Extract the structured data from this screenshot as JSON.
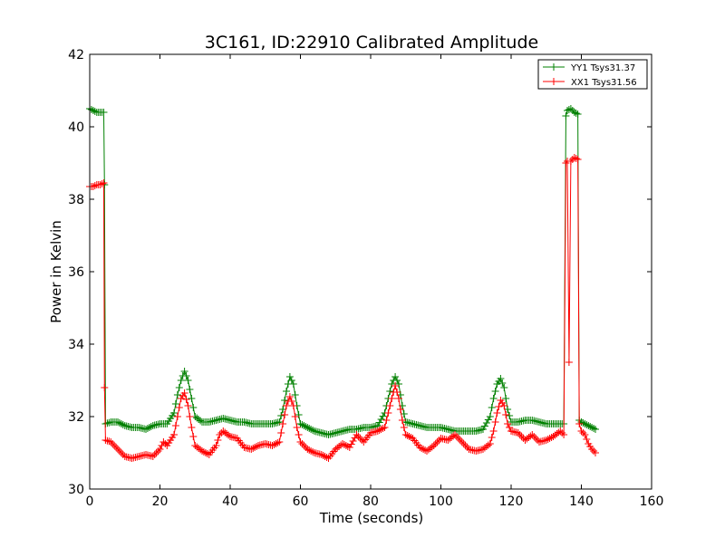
{
  "chart_data": {
    "type": "line",
    "title": "3C161, ID:22910 Calibrated Amplitude",
    "xlabel": "Time (seconds)",
    "ylabel": "Power in Kelvin",
    "xlim": [
      0,
      160
    ],
    "ylim": [
      30,
      42
    ],
    "xticks": [
      0,
      20,
      40,
      60,
      80,
      100,
      120,
      140,
      160
    ],
    "yticks": [
      30,
      32,
      34,
      36,
      38,
      40,
      42
    ],
    "grid": false,
    "legend": {
      "position": "top-right"
    },
    "marker": "plus",
    "series": [
      {
        "name": "YY1 Tsys31.37",
        "color": "#008000",
        "points": [
          [
            0,
            40.5
          ],
          [
            1,
            40.45
          ],
          [
            2,
            40.4
          ],
          [
            3,
            40.4
          ],
          [
            4,
            40.4
          ],
          [
            4.2,
            38.4
          ],
          [
            4.5,
            31.8
          ],
          [
            6,
            31.85
          ],
          [
            8,
            31.85
          ],
          [
            10,
            31.75
          ],
          [
            12,
            31.7
          ],
          [
            14,
            31.7
          ],
          [
            16,
            31.65
          ],
          [
            18,
            31.75
          ],
          [
            20,
            31.8
          ],
          [
            22,
            31.8
          ],
          [
            24,
            32.1
          ],
          [
            25,
            32.6
          ],
          [
            26,
            33.0
          ],
          [
            27,
            33.25
          ],
          [
            28,
            33.0
          ],
          [
            29,
            32.5
          ],
          [
            30,
            32.0
          ],
          [
            32,
            31.85
          ],
          [
            34,
            31.85
          ],
          [
            36,
            31.9
          ],
          [
            38,
            31.95
          ],
          [
            40,
            31.9
          ],
          [
            42,
            31.85
          ],
          [
            44,
            31.85
          ],
          [
            46,
            31.8
          ],
          [
            48,
            31.8
          ],
          [
            50,
            31.8
          ],
          [
            52,
            31.8
          ],
          [
            54,
            31.85
          ],
          [
            55,
            32.2
          ],
          [
            56,
            32.7
          ],
          [
            57,
            33.1
          ],
          [
            58,
            32.9
          ],
          [
            59,
            32.3
          ],
          [
            60,
            31.8
          ],
          [
            62,
            31.7
          ],
          [
            64,
            31.6
          ],
          [
            66,
            31.55
          ],
          [
            68,
            31.5
          ],
          [
            70,
            31.55
          ],
          [
            72,
            31.6
          ],
          [
            74,
            31.65
          ],
          [
            76,
            31.65
          ],
          [
            78,
            31.7
          ],
          [
            80,
            31.7
          ],
          [
            82,
            31.75
          ],
          [
            84,
            32.1
          ],
          [
            85,
            32.5
          ],
          [
            86,
            32.9
          ],
          [
            87,
            33.1
          ],
          [
            88,
            32.9
          ],
          [
            89,
            32.3
          ],
          [
            90,
            31.85
          ],
          [
            92,
            31.8
          ],
          [
            94,
            31.75
          ],
          [
            96,
            31.7
          ],
          [
            98,
            31.7
          ],
          [
            100,
            31.7
          ],
          [
            102,
            31.65
          ],
          [
            104,
            31.6
          ],
          [
            106,
            31.6
          ],
          [
            108,
            31.6
          ],
          [
            110,
            31.6
          ],
          [
            112,
            31.65
          ],
          [
            114,
            32.0
          ],
          [
            115,
            32.5
          ],
          [
            116,
            32.9
          ],
          [
            117,
            33.05
          ],
          [
            118,
            32.8
          ],
          [
            119,
            32.2
          ],
          [
            120,
            31.85
          ],
          [
            122,
            31.85
          ],
          [
            124,
            31.9
          ],
          [
            126,
            31.9
          ],
          [
            128,
            31.85
          ],
          [
            130,
            31.8
          ],
          [
            132,
            31.8
          ],
          [
            134,
            31.8
          ],
          [
            135,
            31.8
          ],
          [
            135.6,
            40.3
          ],
          [
            136,
            40.45
          ],
          [
            137,
            40.5
          ],
          [
            138,
            40.4
          ],
          [
            139,
            40.35
          ],
          [
            139.4,
            31.9
          ],
          [
            140,
            31.85
          ],
          [
            142,
            31.75
          ],
          [
            143,
            31.7
          ],
          [
            144,
            31.65
          ]
        ]
      },
      {
        "name": "XX1 Tsys31.56",
        "color": "#ff0000",
        "points": [
          [
            0,
            38.35
          ],
          [
            1,
            38.35
          ],
          [
            2,
            38.4
          ],
          [
            3,
            38.4
          ],
          [
            4,
            38.45
          ],
          [
            4.2,
            32.8
          ],
          [
            4.5,
            31.35
          ],
          [
            6,
            31.3
          ],
          [
            8,
            31.1
          ],
          [
            10,
            30.9
          ],
          [
            12,
            30.85
          ],
          [
            14,
            30.9
          ],
          [
            16,
            30.95
          ],
          [
            18,
            30.9
          ],
          [
            20,
            31.1
          ],
          [
            21,
            31.3
          ],
          [
            22,
            31.2
          ],
          [
            24,
            31.5
          ],
          [
            25,
            32.0
          ],
          [
            26,
            32.5
          ],
          [
            27,
            32.65
          ],
          [
            28,
            32.3
          ],
          [
            29,
            31.7
          ],
          [
            30,
            31.2
          ],
          [
            32,
            31.05
          ],
          [
            34,
            30.95
          ],
          [
            36,
            31.2
          ],
          [
            37,
            31.5
          ],
          [
            38,
            31.6
          ],
          [
            40,
            31.45
          ],
          [
            42,
            31.4
          ],
          [
            44,
            31.15
          ],
          [
            46,
            31.1
          ],
          [
            48,
            31.2
          ],
          [
            50,
            31.25
          ],
          [
            52,
            31.2
          ],
          [
            54,
            31.3
          ],
          [
            55,
            31.8
          ],
          [
            56,
            32.3
          ],
          [
            57,
            32.55
          ],
          [
            58,
            32.3
          ],
          [
            59,
            31.7
          ],
          [
            60,
            31.3
          ],
          [
            62,
            31.1
          ],
          [
            64,
            31.0
          ],
          [
            66,
            30.95
          ],
          [
            68,
            30.85
          ],
          [
            70,
            31.1
          ],
          [
            72,
            31.25
          ],
          [
            74,
            31.15
          ],
          [
            76,
            31.5
          ],
          [
            78,
            31.3
          ],
          [
            80,
            31.55
          ],
          [
            82,
            31.6
          ],
          [
            84,
            31.7
          ],
          [
            85,
            32.1
          ],
          [
            86,
            32.5
          ],
          [
            87,
            32.85
          ],
          [
            88,
            32.5
          ],
          [
            89,
            31.9
          ],
          [
            90,
            31.5
          ],
          [
            92,
            31.4
          ],
          [
            94,
            31.15
          ],
          [
            96,
            31.05
          ],
          [
            98,
            31.2
          ],
          [
            100,
            31.4
          ],
          [
            102,
            31.35
          ],
          [
            104,
            31.5
          ],
          [
            106,
            31.3
          ],
          [
            108,
            31.1
          ],
          [
            110,
            31.05
          ],
          [
            112,
            31.1
          ],
          [
            114,
            31.25
          ],
          [
            115,
            31.6
          ],
          [
            116,
            32.1
          ],
          [
            117,
            32.45
          ],
          [
            118,
            32.3
          ],
          [
            119,
            31.8
          ],
          [
            120,
            31.6
          ],
          [
            122,
            31.55
          ],
          [
            124,
            31.35
          ],
          [
            126,
            31.5
          ],
          [
            128,
            31.3
          ],
          [
            130,
            31.35
          ],
          [
            132,
            31.45
          ],
          [
            134,
            31.6
          ],
          [
            135,
            31.5
          ],
          [
            135.6,
            39.0
          ],
          [
            136,
            39.05
          ],
          [
            136.5,
            33.5
          ],
          [
            137,
            39.05
          ],
          [
            138,
            39.15
          ],
          [
            139,
            39.1
          ],
          [
            139.4,
            31.8
          ],
          [
            140,
            31.6
          ],
          [
            141,
            31.5
          ],
          [
            142,
            31.25
          ],
          [
            143,
            31.1
          ],
          [
            144,
            31.0
          ]
        ]
      }
    ]
  }
}
